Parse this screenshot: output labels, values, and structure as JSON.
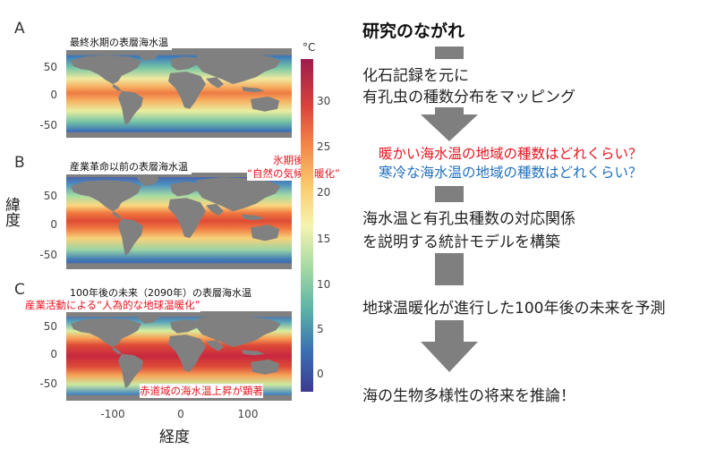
{
  "panels": [
    {
      "letter": "A",
      "title": "最終氷期の表層海水温"
    },
    {
      "letter": "B",
      "title": "産業革命以前の表層海水温"
    },
    {
      "letter": "C",
      "title": "100年後の未来（2090年）の表層海水温"
    }
  ],
  "axes": {
    "y_title": "緯度",
    "x_title": "経度",
    "y_ticks": [
      "50",
      "0",
      "-50"
    ],
    "x_ticks": [
      "-100",
      "0",
      "100"
    ]
  },
  "colorbar": {
    "unit": "°C",
    "ticks": [
      "30",
      "25",
      "20",
      "15",
      "10",
      "5",
      "0"
    ],
    "colors": [
      "#3d3b8e",
      "#3a6fb2",
      "#5fb3a7",
      "#a9dca4",
      "#f6f3b0",
      "#fbc96e",
      "#f3874b",
      "#d9423b",
      "#9c1c4d"
    ]
  },
  "notes": {
    "b_note_line1": "氷期後の",
    "b_note_line2": "“自然の気候温暖化”",
    "c_note_top": "産業活動による“人為的な地球温暖化”",
    "c_note_bottom": "赤道域の海水温上昇が顕著"
  },
  "flow": {
    "title": "研究のながれ",
    "step1_line1": "化石記録を元に",
    "step1_line2": "有孔虫の種数分布をマッピング",
    "question_warm": "暖かい海水温の地域の種数はどれくらい？",
    "question_cold": "寒冷な海水温の地域の種数はどれくらい？",
    "step2_line1": "海水温と有孔虫種数の対応関係",
    "step2_line2": "を説明する統計モデルを構築",
    "step3": "地球温暖化が進行した100年後の未来を予測",
    "step4": "海の生物多様性の将来を推論！",
    "warm_color": "#e8131f",
    "cold_color": "#1f6fbf"
  }
}
